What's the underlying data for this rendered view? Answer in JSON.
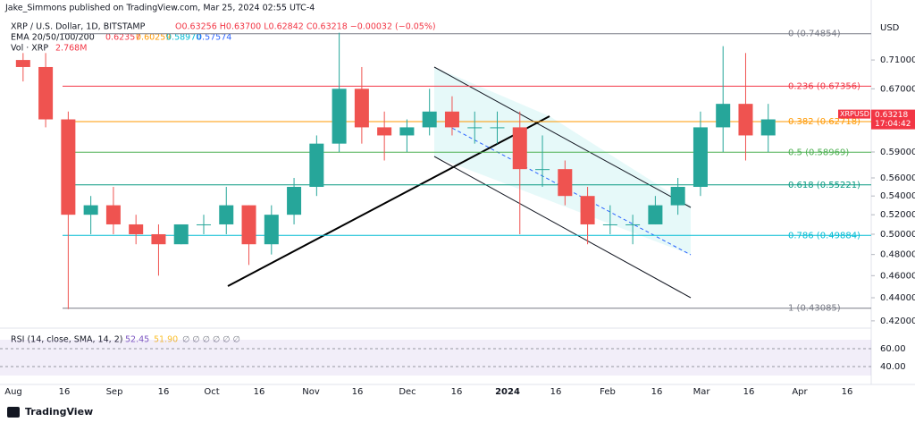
{
  "header": {
    "byline": "Jake_Simmons published on TradingView.com, Mar 25, 2024 02:55 UTC-4",
    "symbol": "XRP / U.S. Dollar, 1D, BITSTAMP",
    "ohlc": "O0.63256 H0.63700 L0.62842 C0.63218 −0.00032 (−0.05%)",
    "ema_label": "EMA 20/50/100/200",
    "ema_values": [
      "0.62357",
      "0.60259",
      "0.58970",
      "0.57574"
    ],
    "vol_label": "Vol · XRP",
    "vol_value": "2.768M",
    "rsi_label": "RSI (14, close, SMA, 14, 2)",
    "rsi_values": [
      "52.45",
      "51.90"
    ],
    "rsi_extra": "∅ ∅ ∅ ∅ ∅ ∅"
  },
  "chart_data": {
    "type": "candlestick",
    "currency": "USD",
    "log_scale": true,
    "categories": [
      null,
      null,
      null,
      null,
      null,
      null,
      null,
      null,
      null,
      null,
      null,
      null,
      null,
      null,
      null,
      null,
      null,
      null,
      null,
      null,
      null,
      null,
      null,
      null,
      null,
      null,
      null,
      null,
      null,
      null,
      null,
      null,
      null,
      null
    ],
    "open": [
      0.71,
      0.7,
      0.63,
      0.52,
      0.53,
      0.51,
      0.5,
      0.49,
      0.51,
      0.51,
      0.53,
      0.49,
      0.52,
      0.55,
      0.6,
      0.67,
      0.62,
      0.61,
      0.62,
      0.64,
      0.62,
      0.62,
      0.62,
      0.57,
      0.57,
      0.54,
      0.51,
      0.51,
      0.51,
      0.53,
      0.55,
      0.62,
      0.65,
      0.61
    ],
    "high": [
      0.72,
      0.72,
      0.64,
      0.54,
      0.55,
      0.52,
      0.51,
      0.51,
      0.52,
      0.55,
      0.53,
      0.53,
      0.56,
      0.61,
      0.75,
      0.7,
      0.64,
      0.63,
      0.67,
      0.66,
      0.64,
      0.64,
      0.64,
      0.61,
      0.58,
      0.55,
      0.53,
      0.52,
      0.54,
      0.56,
      0.64,
      0.73,
      0.72,
      0.65
    ],
    "low": [
      0.68,
      0.62,
      0.43,
      0.5,
      0.5,
      0.49,
      0.46,
      0.49,
      0.5,
      0.5,
      0.47,
      0.48,
      0.51,
      0.54,
      0.59,
      0.6,
      0.58,
      0.59,
      0.61,
      0.61,
      0.6,
      0.6,
      0.5,
      0.55,
      0.53,
      0.49,
      0.5,
      0.49,
      0.51,
      0.52,
      0.54,
      0.59,
      0.58,
      0.59
    ],
    "close": [
      0.7,
      0.63,
      0.52,
      0.53,
      0.51,
      0.5,
      0.49,
      0.51,
      0.51,
      0.53,
      0.49,
      0.52,
      0.55,
      0.6,
      0.67,
      0.62,
      0.61,
      0.62,
      0.64,
      0.62,
      0.62,
      0.62,
      0.57,
      0.57,
      0.54,
      0.51,
      0.51,
      0.51,
      0.53,
      0.55,
      0.62,
      0.65,
      0.61,
      0.63
    ],
    "up_color": "#26a69a",
    "down_color": "#ef5350",
    "ylim": [
      0.4154,
      0.759
    ],
    "yticks": [
      {
        "value": 0.71,
        "label": "0.71000"
      },
      {
        "value": 0.67,
        "label": "0.67000"
      },
      {
        "value": 0.59,
        "label": "0.59000"
      },
      {
        "value": 0.56,
        "label": "0.56000"
      },
      {
        "value": 0.54,
        "label": "0.54000"
      },
      {
        "value": 0.52,
        "label": "0.52000"
      },
      {
        "value": 0.5,
        "label": "0.50000"
      },
      {
        "value": 0.48,
        "label": "0.48000"
      },
      {
        "value": 0.46,
        "label": "0.46000"
      },
      {
        "value": 0.44,
        "label": "0.44000"
      },
      {
        "value": 0.42,
        "label": "0.42000"
      }
    ],
    "time_labels": [
      "Aug",
      "16",
      "Sep",
      "16",
      "Oct",
      "16",
      "Nov",
      "16",
      "Dec",
      "16",
      "2024",
      "16",
      "Feb",
      "16",
      "Mar",
      "16",
      "Apr",
      "16"
    ],
    "fib_levels": [
      {
        "value": 0.74854,
        "label": "0 (0.74854)",
        "color": "#787b86"
      },
      {
        "value": 0.67356,
        "label": "0.236 (0.67356)",
        "color": "#f23645"
      },
      {
        "value": 0.62718,
        "label": "0.382 (0.62718)",
        "color": "#ff9800"
      },
      {
        "value": 0.58969,
        "label": "0.5 (0.58969)",
        "color": "#4caf50"
      },
      {
        "value": 0.55221,
        "label": "0.618 (0.55221)",
        "color": "#089981"
      },
      {
        "value": 0.49884,
        "label": "0.786 (0.49884)",
        "color": "#00bcd4"
      },
      {
        "value": 0.43085,
        "label": "1 (0.43085)",
        "color": "#787b86"
      }
    ],
    "last_price": {
      "symbol": "XRPUSD",
      "price": "0.63218",
      "countdown": "17:04:42"
    },
    "rsi_ylim": [
      20,
      80
    ],
    "rsi_band": [
      30,
      70
    ],
    "rsi_yticks": [
      {
        "value": 60,
        "label": "60.00"
      },
      {
        "value": 40,
        "label": "40.00"
      }
    ]
  },
  "footer": {
    "brand": "TradingView"
  }
}
